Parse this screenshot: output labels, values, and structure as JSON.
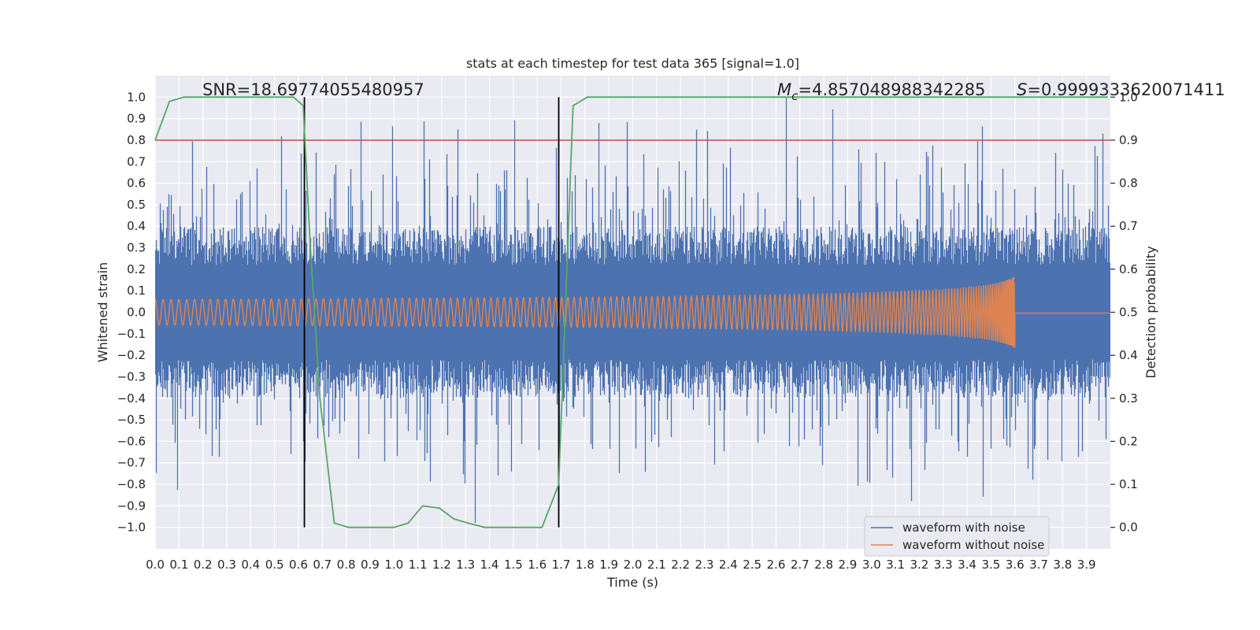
{
  "chart_data": {
    "type": "line",
    "title": "stats at each timestep for test data 365 [signal=1.0]",
    "xlabel": "Time (s)",
    "ylabel": "Whitened strain",
    "y2label": "Detection probability",
    "xlim": [
      0.0,
      4.0
    ],
    "ylim": [
      -1.1,
      1.1
    ],
    "y2lim": [
      -0.05,
      1.05
    ],
    "xticks": [
      "0.0",
      "0.1",
      "0.2",
      "0.3",
      "0.4",
      "0.5",
      "0.6",
      "0.7",
      "0.8",
      "0.9",
      "1.0",
      "1.1",
      "1.2",
      "1.3",
      "1.4",
      "1.5",
      "1.6",
      "1.7",
      "1.8",
      "1.9",
      "2.0",
      "2.1",
      "2.2",
      "2.3",
      "2.4",
      "2.5",
      "2.6",
      "2.7",
      "2.8",
      "2.9",
      "3.0",
      "3.1",
      "3.2",
      "3.3",
      "3.4",
      "3.5",
      "3.6",
      "3.7",
      "3.8",
      "3.9"
    ],
    "yticks": [
      "1.0",
      "0.9",
      "0.8",
      "0.7",
      "0.6",
      "0.5",
      "0.4",
      "0.3",
      "0.2",
      "0.1",
      "0.0",
      "−0.1",
      "−0.2",
      "−0.3",
      "−0.4",
      "−0.5",
      "−0.6",
      "−0.7",
      "−0.8",
      "−0.9",
      "−1.0"
    ],
    "y2ticks": [
      "1.0",
      "0.9",
      "0.8",
      "0.7",
      "0.6",
      "0.5",
      "0.4",
      "0.3",
      "0.2",
      "0.1",
      "0.0"
    ],
    "grid": true,
    "legend_position": "bottom-right",
    "annotations": {
      "snr": "SNR=18.69774055480957",
      "mc_symbol": "M",
      "mc_sub": "c",
      "mc_value": "=4.857048988342285",
      "s_symbol": "S",
      "s_value": "=0.9999333620071411"
    },
    "series": [
      {
        "name": "waveform with noise",
        "color": "#4c72b0",
        "kind": "noisy_strain",
        "typical_envelope": 0.4,
        "max_peak": 1.0,
        "min_peak": -1.0
      },
      {
        "name": "waveform without noise",
        "color": "#dd8452",
        "kind": "chirp",
        "start_amplitude": 0.06,
        "end_amplitude": 0.4,
        "merger_time": 3.6
      },
      {
        "name": "",
        "color": "#55a868",
        "axis": "right",
        "kind": "detection_probability",
        "x": [
          0.0,
          0.06,
          0.12,
          0.2,
          0.3,
          0.4,
          0.5,
          0.58,
          0.62,
          0.65,
          0.69,
          0.75,
          0.81,
          0.88,
          0.95,
          1.0,
          1.06,
          1.12,
          1.19,
          1.25,
          1.31,
          1.38,
          1.44,
          1.5,
          1.56,
          1.62,
          1.69,
          1.75,
          1.81,
          1.9,
          2.5,
          3.0,
          3.5,
          3.99
        ],
        "y": [
          0.9,
          0.99,
          1.0,
          1.0,
          1.0,
          1.0,
          1.0,
          1.0,
          0.98,
          0.65,
          0.3,
          0.01,
          0.0,
          0.0,
          0.0,
          0.0,
          0.01,
          0.05,
          0.045,
          0.02,
          0.01,
          0.0,
          0.0,
          0.0,
          0.0,
          0.0,
          0.1,
          0.98,
          1.0,
          1.0,
          1.0,
          1.0,
          1.0,
          1.0
        ]
      }
    ],
    "threshold_line": {
      "axis": "right",
      "value": 0.9,
      "color": "#c44e52"
    },
    "vertical_markers": {
      "x": [
        0.625,
        1.69
      ],
      "ymin": -1.0,
      "ymax": 1.0,
      "color": "#000000"
    }
  }
}
